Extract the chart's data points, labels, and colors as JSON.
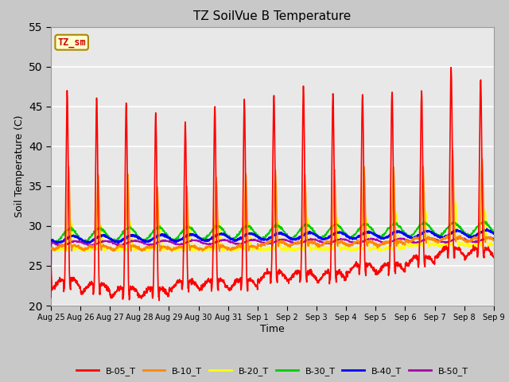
{
  "title": "TZ SoilVue B Temperature",
  "ylabel": "Soil Temperature (C)",
  "xlabel": "Time",
  "ylim": [
    20,
    55
  ],
  "yticks": [
    20,
    25,
    30,
    35,
    40,
    45,
    50,
    55
  ],
  "fig_bg_color": "#c8c8c8",
  "plot_bg_color": "#e8e8e8",
  "grid_color": "#ffffff",
  "series_colors": {
    "B-05_T": "#ff0000",
    "B-10_T": "#ff8800",
    "B-20_T": "#ffff00",
    "B-30_T": "#00cc00",
    "B-40_T": "#0000ff",
    "B-50_T": "#aa00aa"
  },
  "annotation_label": "TZ_sm",
  "annotation_color": "#cc0000",
  "annotation_bg": "#ffffcc",
  "annotation_border": "#aa8800",
  "tick_labels": [
    "Aug 25",
    "Aug 26",
    "Aug 27",
    "Aug 28",
    "Aug 29",
    "Aug 30",
    "Aug 31",
    "Sep 1",
    "Sep 2",
    "Sep 3",
    "Sep 4",
    "Sep 5",
    "Sep 6",
    "Sep 7",
    "Sep 8",
    "Sep 9"
  ],
  "b05_peaks": [
    47.0,
    46.0,
    45.5,
    44.0,
    43.0,
    45.0,
    45.5,
    46.5,
    47.5,
    46.5,
    46.5,
    47.0,
    47.0,
    50.0,
    48.5
  ],
  "b05_troughs": [
    22.0,
    21.5,
    21.0,
    21.0,
    22.0,
    22.0,
    22.0,
    23.0,
    23.0,
    23.0,
    24.0,
    24.0,
    25.0,
    26.0,
    26.0
  ],
  "b10_peaks": [
    37.5,
    36.5,
    36.5,
    35.0,
    35.0,
    36.0,
    36.5,
    37.0,
    36.5,
    37.0,
    37.5,
    37.5,
    37.5,
    39.5,
    38.5
  ],
  "b10_troughs": [
    27.0,
    27.0,
    27.0,
    27.0,
    27.0,
    27.0,
    27.0,
    27.5,
    27.5,
    27.5,
    27.5,
    27.5,
    28.0,
    28.0,
    28.0
  ],
  "b20_peaks": [
    30.5,
    30.0,
    30.5,
    30.0,
    30.0,
    30.5,
    30.5,
    30.5,
    31.0,
    31.0,
    31.0,
    31.5,
    31.5,
    33.0,
    32.0
  ],
  "b20_troughs": [
    27.0,
    27.0,
    27.0,
    27.0,
    27.0,
    27.0,
    27.0,
    27.0,
    27.0,
    27.0,
    27.0,
    27.0,
    27.5,
    27.5,
    27.5
  ],
  "b30_base": 28.8,
  "b30_amp": 0.8,
  "b30_trend": 0.06,
  "b40_base": 28.3,
  "b40_amp": 0.4,
  "b40_trend": 0.05,
  "b50_base": 27.8,
  "b50_amp": 0.25,
  "b50_trend": 0.03,
  "n_days": 15,
  "pts_per_day": 144
}
